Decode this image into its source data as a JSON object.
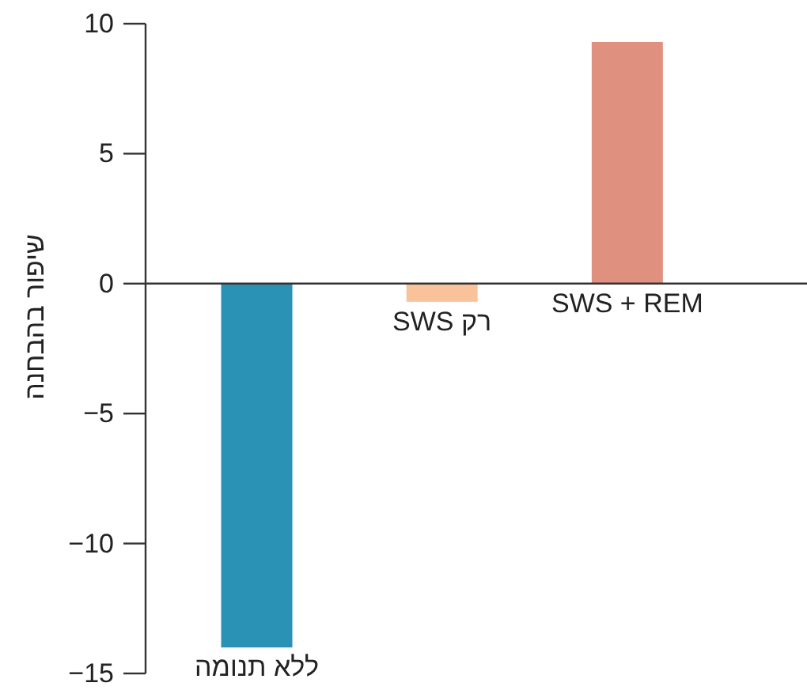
{
  "chart_data": {
    "type": "bar",
    "ylabel": "שיפור בהבחנה",
    "categories": [
      "ללא תנומה",
      "רק SWS",
      "SWS + REM"
    ],
    "values": [
      -14,
      -0.7,
      9.3
    ],
    "colors": [
      "#2a93b5",
      "#f9c29a",
      "#e0907f"
    ],
    "ylim": [
      -15,
      10
    ],
    "yticks": [
      {
        "value": -15,
        "label": "−15"
      },
      {
        "value": -10,
        "label": "−10"
      },
      {
        "value": -5,
        "label": "−5"
      },
      0,
      5,
      10
    ]
  }
}
